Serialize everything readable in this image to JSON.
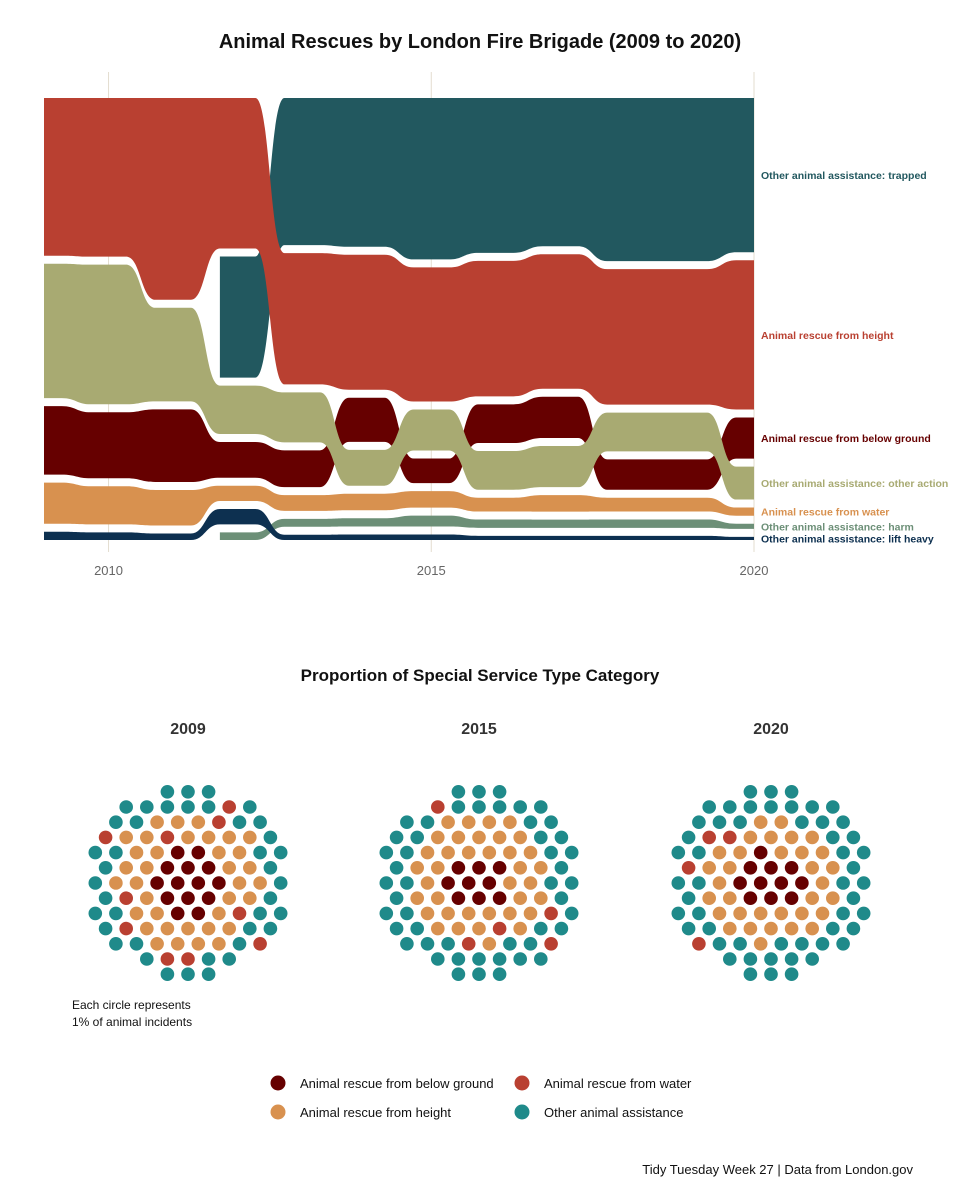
{
  "caption": "Tidy Tuesday Week 27 | Data from London.gov",
  "chart_data": [
    {
      "type": "area",
      "subtype": "ranked stream / bump area",
      "title": "Animal Rescues by London Fire Brigade (2009 to 2020)",
      "x_ticks": [
        "2010",
        "2015",
        "2020"
      ],
      "xlim": [
        2009,
        2020
      ],
      "grid": "vertical major gridlines",
      "years": [
        2009,
        2010,
        2011,
        2012,
        2013,
        2014,
        2015,
        2016,
        2017,
        2018,
        2019,
        2020
      ],
      "series": [
        {
          "name": "Other animal assistance: trapped",
          "color": "#22585f",
          "values": [
            null,
            null,
            null,
            95,
            112,
            108,
            118,
            112,
            108,
            118,
            118,
            150
          ]
        },
        {
          "name": "Animal rescue from height",
          "color": "#b94031",
          "values": [
            115,
            125,
            125,
            118,
            100,
            98,
            98,
            98,
            98,
            98,
            98,
            145
          ]
        },
        {
          "name": "Animal rescue from below ground",
          "color": "#660000",
          "values": [
            50,
            52,
            45,
            28,
            28,
            32,
            18,
            28,
            30,
            22,
            22,
            40
          ]
        },
        {
          "name": "Other animal assistance: other action",
          "color": "#a8aa72",
          "values": [
            98,
            110,
            58,
            38,
            38,
            26,
            30,
            28,
            30,
            28,
            28,
            32
          ]
        },
        {
          "name": "Animal rescue from water",
          "color": "#d8914f",
          "values": [
            30,
            30,
            22,
            12,
            12,
            12,
            12,
            10,
            12,
            10,
            10,
            8
          ]
        },
        {
          "name": "Other animal assistance: harm",
          "color": "#6c8f77",
          "values": [
            null,
            null,
            null,
            6,
            6,
            6,
            8,
            6,
            6,
            6,
            6,
            5
          ]
        },
        {
          "name": "Other animal assistance: lift heavy",
          "color": "#0d3050",
          "values": [
            6,
            6,
            4,
            12,
            4,
            4,
            4,
            3,
            3,
            3,
            3,
            3
          ]
        }
      ]
    },
    {
      "type": "dot-grid",
      "title": "Proportion of Special Service Type Category",
      "note_lines": [
        "Each circle represents",
        "1% of animal incidents"
      ],
      "legend": [
        {
          "name": "Animal rescue from below ground",
          "color": "#660000"
        },
        {
          "name": "Animal rescue from water",
          "color": "#b94031"
        },
        {
          "name": "Animal rescue from height",
          "color": "#d8914f"
        },
        {
          "name": "Other animal assistance",
          "color": "#1f8a8a"
        }
      ],
      "panels": [
        {
          "year": "2009",
          "counts": {
            "below_ground": 14,
            "water": 10,
            "height": 36,
            "other": 40
          }
        },
        {
          "year": "2015",
          "counts": {
            "below_ground": 9,
            "water": 5,
            "height": 37,
            "other": 49
          }
        },
        {
          "year": "2020",
          "counts": {
            "below_ground": 11,
            "water": 4,
            "height": 33,
            "other": 52
          }
        }
      ]
    }
  ]
}
